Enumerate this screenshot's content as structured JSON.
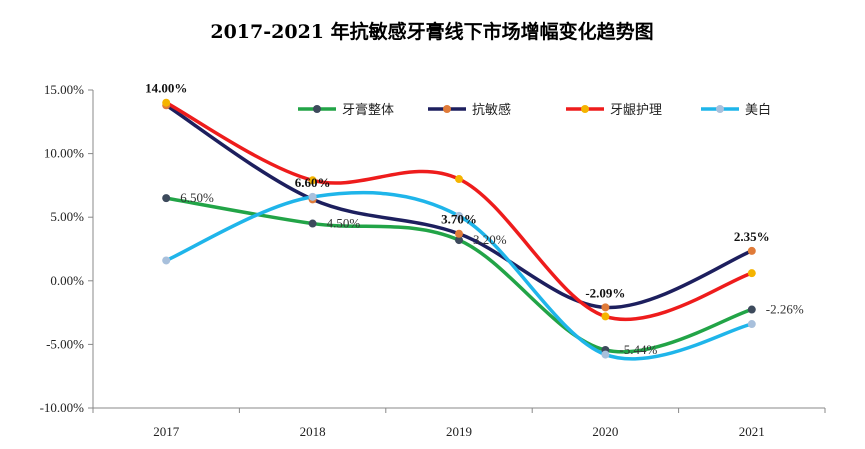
{
  "chart_data": {
    "type": "line",
    "title": "2017-2021 年抗敏感牙膏线下市场增幅变化趋势图",
    "categories": [
      "2017",
      "2018",
      "2019",
      "2020",
      "2021"
    ],
    "ylim": [
      -10,
      15
    ],
    "yticks": [
      15,
      10,
      5,
      0,
      -5,
      -10
    ],
    "ytick_labels": [
      "15.00%",
      "10.00%",
      "5.00%",
      "0.00%",
      "-5.00%",
      "-10.00%"
    ],
    "legend_position": "top-right",
    "grid": false,
    "series": [
      {
        "name": "牙膏整体",
        "color": "#22a447",
        "marker": "#3d4a5c",
        "values": [
          6.5,
          4.5,
          3.2,
          -5.44,
          -2.26
        ]
      },
      {
        "name": "抗敏感",
        "color": "#1d1f5e",
        "marker": "#e07b39",
        "values": [
          13.8,
          6.4,
          3.7,
          -2.09,
          2.35
        ]
      },
      {
        "name": "牙龈护理",
        "color": "#ee1c1c",
        "marker": "#f5b400",
        "values": [
          14.0,
          7.9,
          8.0,
          -2.8,
          0.6
        ]
      },
      {
        "name": "美白",
        "color": "#1fb5ea",
        "marker": "#a8c0dc",
        "values": [
          1.6,
          6.6,
          5.1,
          -5.8,
          -3.4
        ]
      }
    ],
    "annotations": [
      {
        "text": "14.00%",
        "category": "2017",
        "value": 14.0,
        "bold": true
      },
      {
        "text": "6.50%",
        "category": "2017",
        "value": 6.5,
        "bold": false
      },
      {
        "text": "6.60%",
        "category": "2018",
        "value": 6.6,
        "bold": true
      },
      {
        "text": "4.50%",
        "category": "2018",
        "value": 4.5,
        "bold": false
      },
      {
        "text": "3.70%",
        "category": "2019",
        "value": 3.7,
        "bold": true
      },
      {
        "text": "3.20%",
        "category": "2019",
        "value": 3.2,
        "bold": false
      },
      {
        "text": "-2.09%",
        "category": "2020",
        "value": -2.09,
        "bold": true
      },
      {
        "text": "-5.44%",
        "category": "2020",
        "value": -5.44,
        "bold": false
      },
      {
        "text": "2.35%",
        "category": "2021",
        "value": 2.35,
        "bold": true
      },
      {
        "text": "-2.26%",
        "category": "2021",
        "value": -2.26,
        "bold": false
      }
    ]
  }
}
